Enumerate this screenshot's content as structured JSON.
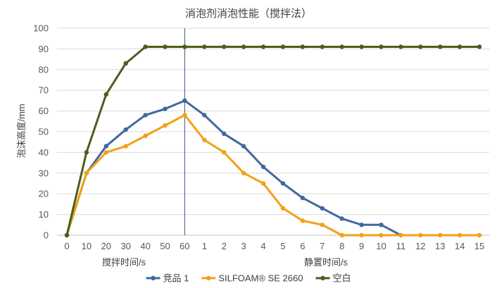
{
  "chart_data": {
    "type": "line",
    "title": "消泡剂消泡性能（搅拌法）",
    "ylabel": "泡沫高度/mm",
    "ylim": [
      0,
      100
    ],
    "yticks": [
      0,
      10,
      20,
      30,
      40,
      50,
      60,
      70,
      80,
      90,
      100
    ],
    "grid": "horizontal",
    "legend_position": "bottom",
    "divider_after_category": "60",
    "group_labels": [
      "搅拌时间/s",
      "静置时间/s"
    ],
    "categories": [
      "0",
      "10",
      "20",
      "30",
      "40",
      "50",
      "60",
      "1",
      "2",
      "3",
      "4",
      "5",
      "6",
      "7",
      "8",
      "9",
      "10",
      "11",
      "12",
      "13",
      "14",
      "15"
    ],
    "series": [
      {
        "name": "竞品 1",
        "color": "#41699c",
        "values": [
          0,
          30,
          43,
          51,
          58,
          61,
          65,
          58,
          49,
          43,
          33,
          25,
          18,
          13,
          8,
          5,
          5,
          0,
          null,
          null,
          null,
          null
        ]
      },
      {
        "name": "SILFOAM® SE 2660",
        "color": "#f2a117",
        "values": [
          0,
          30,
          40,
          43,
          48,
          53,
          58,
          46,
          40,
          30,
          25,
          13,
          7,
          5,
          0,
          0,
          0,
          0,
          0,
          0,
          0,
          0
        ]
      },
      {
        "name": "空白",
        "color": "#4c5d1e",
        "values": [
          0,
          40,
          68,
          83,
          91,
          91,
          91,
          91,
          91,
          91,
          91,
          91,
          91,
          91,
          91,
          91,
          91,
          91,
          91,
          91,
          91,
          91
        ]
      }
    ]
  }
}
